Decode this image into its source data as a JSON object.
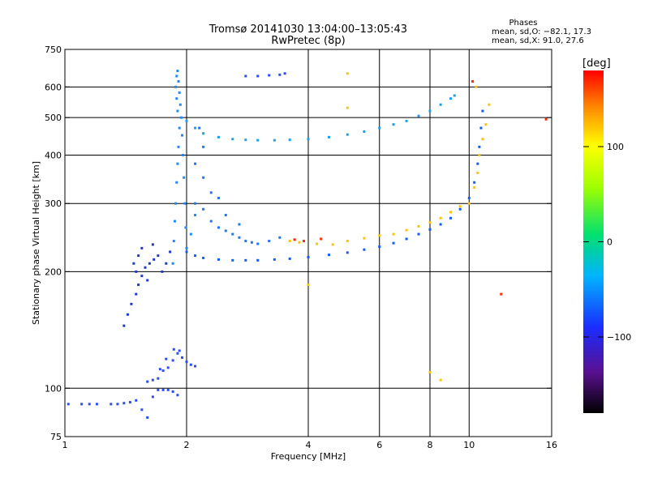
{
  "chart_data": {
    "type": "scatter",
    "title_line1": "Tromsø 20141030 13:04:00–13:05:43",
    "title_line2": "RwPretec (8p)",
    "xlabel": "Frequency [MHz]",
    "ylabel": "Stationary phase Virtual Height [km]",
    "xscale": "log",
    "yscale": "log",
    "xlim": [
      1,
      16
    ],
    "ylim": [
      75,
      750
    ],
    "x_ticks": [
      {
        "value": 1,
        "label": "1"
      },
      {
        "value": 2,
        "label": "2"
      },
      {
        "value": 4,
        "label": "4"
      },
      {
        "value": 6,
        "label": "6"
      },
      {
        "value": 8,
        "label": "8"
      },
      {
        "value": 10,
        "label": "10"
      },
      {
        "value": 16,
        "label": "16"
      }
    ],
    "y_ticks": [
      {
        "value": 75,
        "label": "75"
      },
      {
        "value": 100,
        "label": "100"
      },
      {
        "value": 200,
        "label": "200"
      },
      {
        "value": 300,
        "label": "300"
      },
      {
        "value": 400,
        "label": "400"
      },
      {
        "value": 500,
        "label": "500"
      },
      {
        "value": 600,
        "label": "600"
      },
      {
        "value": 750,
        "label": "750"
      }
    ],
    "x_gridlines": [
      2,
      4,
      6,
      8,
      10
    ],
    "y_gridlines": [
      100,
      200,
      300,
      400,
      500,
      600
    ],
    "grid": true,
    "stats": {
      "heading": "Phases",
      "line_o": "mean, sd,O: −82.1, 17.3",
      "line_x": "mean, sd,X:  91.0, 27.6"
    },
    "colorbar": {
      "unit": "[deg]",
      "range": [
        -180,
        180
      ],
      "placement": "right",
      "ticks": [
        {
          "value": 100,
          "label": "100"
        },
        {
          "value": 0,
          "label": "0"
        },
        {
          "value": -100,
          "label": "−100"
        }
      ]
    },
    "traces": [
      {
        "name": "",
        "desc": "low E-region trace",
        "color": "#2a4cff",
        "points": [
          [
            1.02,
            91
          ],
          [
            1.1,
            91
          ],
          [
            1.15,
            91
          ],
          [
            1.2,
            91
          ],
          [
            1.3,
            91
          ],
          [
            1.35,
            91
          ],
          [
            1.4,
            91.5
          ],
          [
            1.45,
            92
          ],
          [
            1.5,
            93
          ],
          [
            1.55,
            88
          ],
          [
            1.6,
            84
          ],
          [
            1.65,
            95
          ],
          [
            1.7,
            99
          ],
          [
            1.75,
            99
          ],
          [
            1.8,
            99
          ],
          [
            1.85,
            98
          ],
          [
            1.9,
            96
          ]
        ]
      },
      {
        "name": "",
        "desc": "E-region layer ~100-125 km",
        "color": "#2a4cff",
        "points": [
          [
            1.6,
            104
          ],
          [
            1.65,
            105
          ],
          [
            1.7,
            106
          ],
          [
            1.75,
            111
          ],
          [
            1.8,
            113
          ],
          [
            1.85,
            118
          ],
          [
            1.9,
            123
          ],
          [
            1.95,
            120
          ],
          [
            2.0,
            117
          ],
          [
            2.05,
            115
          ],
          [
            2.1,
            114
          ],
          [
            1.72,
            112
          ],
          [
            1.78,
            119
          ],
          [
            1.86,
            126
          ],
          [
            1.92,
            125
          ]
        ]
      },
      {
        "name": "",
        "desc": "low spread F trace",
        "color": "#2038d0",
        "points": [
          [
            1.4,
            145
          ],
          [
            1.43,
            155
          ],
          [
            1.46,
            165
          ],
          [
            1.5,
            175
          ],
          [
            1.52,
            185
          ],
          [
            1.55,
            195
          ],
          [
            1.5,
            200
          ],
          [
            1.48,
            210
          ],
          [
            1.52,
            220
          ],
          [
            1.58,
            205
          ],
          [
            1.62,
            210
          ],
          [
            1.66,
            215
          ],
          [
            1.7,
            220
          ],
          [
            1.74,
            200
          ],
          [
            1.78,
            210
          ],
          [
            1.82,
            225
          ],
          [
            1.6,
            190
          ],
          [
            1.55,
            230
          ],
          [
            1.65,
            235
          ]
        ]
      },
      {
        "name": "",
        "desc": "vertical spread trace near 1.9 MHz",
        "color": "#1e88ff",
        "points": [
          [
            1.85,
            210
          ],
          [
            1.86,
            240
          ],
          [
            1.87,
            270
          ],
          [
            1.88,
            300
          ],
          [
            1.89,
            340
          ],
          [
            1.9,
            380
          ],
          [
            1.91,
            420
          ],
          [
            1.92,
            470
          ],
          [
            1.9,
            520
          ],
          [
            1.89,
            560
          ],
          [
            1.88,
            600
          ],
          [
            1.89,
            640
          ],
          [
            1.9,
            660
          ],
          [
            1.91,
            620
          ],
          [
            1.92,
            580
          ],
          [
            1.93,
            540
          ],
          [
            1.94,
            500
          ],
          [
            1.95,
            450
          ],
          [
            1.96,
            400
          ],
          [
            1.97,
            350
          ],
          [
            1.98,
            300
          ],
          [
            1.99,
            260
          ],
          [
            2.0,
            230
          ],
          [
            2.05,
            250
          ],
          [
            2.1,
            280
          ]
        ]
      },
      {
        "name": "",
        "desc": "scattered cloud 2-3.5 MHz",
        "color": "#1e74ff",
        "points": [
          [
            2.1,
            300
          ],
          [
            2.2,
            290
          ],
          [
            2.3,
            270
          ],
          [
            2.4,
            260
          ],
          [
            2.5,
            255
          ],
          [
            2.6,
            250
          ],
          [
            2.7,
            245
          ],
          [
            2.8,
            240
          ],
          [
            2.9,
            238
          ],
          [
            3.0,
            236
          ],
          [
            3.2,
            240
          ],
          [
            3.4,
            245
          ],
          [
            2.2,
            350
          ],
          [
            2.1,
            380
          ],
          [
            2.3,
            320
          ],
          [
            2.5,
            280
          ],
          [
            2.7,
            265
          ],
          [
            2.4,
            310
          ],
          [
            2.2,
            420
          ],
          [
            2.15,
            470
          ]
        ]
      },
      {
        "name": "",
        "desc": "lower F-layer trace",
        "color": "#0f5cff",
        "points": [
          [
            2.0,
            225
          ],
          [
            2.1,
            220
          ],
          [
            2.2,
            217
          ],
          [
            2.4,
            215
          ],
          [
            2.6,
            214
          ],
          [
            2.8,
            214
          ],
          [
            3.0,
            214
          ],
          [
            3.3,
            215
          ],
          [
            3.6,
            216
          ],
          [
            4.0,
            218
          ],
          [
            4.5,
            221
          ],
          [
            5.0,
            224
          ],
          [
            5.5,
            228
          ],
          [
            6.0,
            232
          ],
          [
            6.5,
            237
          ],
          [
            7.0,
            243
          ],
          [
            7.5,
            250
          ],
          [
            8.0,
            257
          ],
          [
            8.5,
            265
          ],
          [
            9.0,
            275
          ],
          [
            9.5,
            290
          ],
          [
            10.0,
            310
          ],
          [
            10.3,
            340
          ],
          [
            10.5,
            380
          ],
          [
            10.6,
            420
          ],
          [
            10.7,
            470
          ],
          [
            10.8,
            520
          ]
        ]
      },
      {
        "name": "",
        "desc": "upper F-layer trace",
        "color": "#1aa0ee",
        "points": [
          [
            2.0,
            490
          ],
          [
            2.1,
            470
          ],
          [
            2.2,
            455
          ],
          [
            2.4,
            445
          ],
          [
            2.6,
            440
          ],
          [
            2.8,
            438
          ],
          [
            3.0,
            437
          ],
          [
            3.3,
            437
          ],
          [
            3.6,
            438
          ],
          [
            4.0,
            440
          ],
          [
            4.5,
            445
          ],
          [
            5.0,
            452
          ],
          [
            5.5,
            460
          ],
          [
            6.0,
            470
          ],
          [
            6.5,
            480
          ],
          [
            7.0,
            490
          ],
          [
            7.5,
            505
          ],
          [
            8.0,
            520
          ],
          [
            8.5,
            540
          ],
          [
            9.0,
            560
          ],
          [
            9.2,
            570
          ]
        ]
      },
      {
        "name": "",
        "desc": "mixed-phase points near X-mode",
        "color": "#ffc400",
        "points": [
          [
            3.6,
            240
          ],
          [
            3.8,
            238
          ],
          [
            4.2,
            236
          ],
          [
            4.6,
            235
          ],
          [
            5.0,
            240
          ],
          [
            5.5,
            244
          ],
          [
            6.0,
            248
          ],
          [
            6.5,
            250
          ],
          [
            7.0,
            256
          ],
          [
            7.5,
            262
          ],
          [
            8.0,
            268
          ],
          [
            8.5,
            275
          ],
          [
            9.0,
            285
          ],
          [
            9.5,
            295
          ],
          [
            10.0,
            300
          ],
          [
            10.3,
            330
          ],
          [
            10.5,
            360
          ],
          [
            10.6,
            400
          ],
          [
            10.8,
            440
          ],
          [
            11.0,
            480
          ],
          [
            11.2,
            540
          ],
          [
            10.4,
            600
          ],
          [
            5.0,
            650
          ],
          [
            5.0,
            530
          ],
          [
            4.0,
            185
          ],
          [
            8.0,
            110
          ],
          [
            8.5,
            105
          ]
        ]
      },
      {
        "name": "",
        "desc": "red phase points",
        "color": "#ff2a00",
        "points": [
          [
            3.7,
            242
          ],
          [
            3.9,
            240
          ],
          [
            4.3,
            243
          ],
          [
            10.2,
            620
          ],
          [
            12.0,
            175
          ],
          [
            15.5,
            495
          ]
        ]
      },
      {
        "name": "",
        "desc": "isolated high echoes",
        "color": "#2a4cff",
        "points": [
          [
            2.8,
            640
          ],
          [
            3.0,
            640
          ],
          [
            3.2,
            643
          ],
          [
            3.4,
            645
          ],
          [
            3.5,
            650
          ]
        ]
      }
    ]
  }
}
